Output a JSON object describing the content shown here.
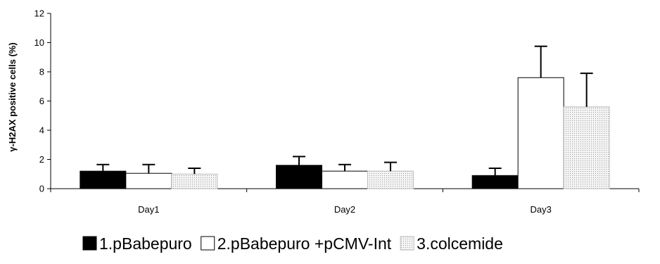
{
  "chart_data": {
    "type": "bar",
    "title": "",
    "xlabel": "",
    "ylabel": "γ-H2AX positive cells (%)",
    "ylim": [
      0,
      12
    ],
    "yticks": [
      "0",
      "2",
      "4",
      "6",
      "8",
      "10",
      "12"
    ],
    "categories": [
      "Day1",
      "Day2",
      "Day3"
    ],
    "grid": false,
    "legend_position": "bottom",
    "series": [
      {
        "name": "1.pBabepuro",
        "values": [
          1.2,
          1.6,
          0.9
        ],
        "errors": [
          0.45,
          0.6,
          0.5
        ],
        "fill": "#000000",
        "pattern": "solid"
      },
      {
        "name": "2.pBabepuro +pCMV-Int",
        "values": [
          1.05,
          1.2,
          7.6
        ],
        "errors": [
          0.6,
          0.45,
          2.15
        ],
        "fill": "#ffffff",
        "pattern": "solid"
      },
      {
        "name": "3.colcemide",
        "values": [
          1.0,
          1.2,
          5.6
        ],
        "errors": [
          0.4,
          0.6,
          2.3
        ],
        "fill": "#e6e6e6",
        "pattern": "dots"
      }
    ]
  }
}
